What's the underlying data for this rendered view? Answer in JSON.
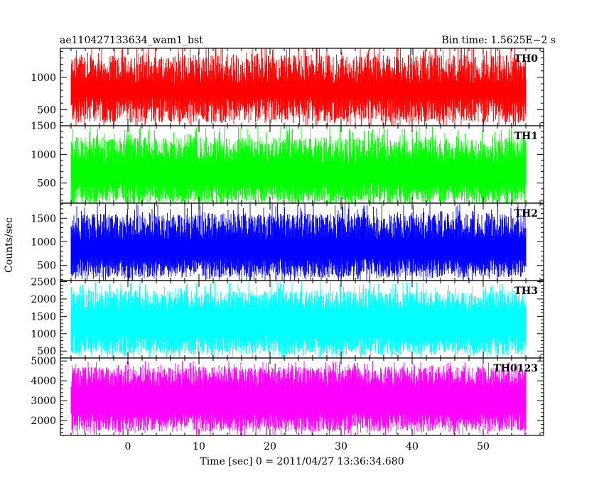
{
  "chart_data": {
    "type": "line",
    "title_left": "ae110427133634_wam1_bst",
    "title_right": "Bin time: 1.5625E−2 s",
    "ylabel": "Counts/sec",
    "xlabel": "Time [sec] 0 = 2011/04/27 13:36:34.680",
    "xlim": [
      -9.5,
      58.5
    ],
    "data_range": [
      -8.0,
      56.0
    ],
    "xticks_major": [
      0,
      10,
      20,
      30,
      40,
      50
    ],
    "xticks_minor_step": 2,
    "panels": [
      {
        "name": "TH0",
        "color": "#ff0000",
        "ylim": [
          250,
          1450
        ],
        "yticks": [
          500,
          1000
        ],
        "yticklabels": [
          "500",
          "1000"
        ],
        "minor_step": 100,
        "min": 200,
        "max": 1600,
        "low_band": [
          300,
          700
        ],
        "high_band": [
          900,
          1350
        ]
      },
      {
        "name": "TH1",
        "color": "#00ff00",
        "ylim": [
          150,
          1500
        ],
        "yticks": [
          500,
          1000,
          1500
        ],
        "yticklabels": [
          "500",
          "1000",
          "1500"
        ],
        "minor_step": 100,
        "min": 100,
        "max": 1500,
        "low_band": [
          150,
          500
        ],
        "high_band": [
          850,
          1300
        ]
      },
      {
        "name": "TH2",
        "color": "#0000ff",
        "ylim": [
          180,
          1820
        ],
        "yticks": [
          500,
          1000,
          1500
        ],
        "yticklabels": [
          "500",
          "1000",
          "1500"
        ],
        "minor_step": 100,
        "min": 150,
        "max": 1850,
        "low_band": [
          250,
          650
        ],
        "high_band": [
          1050,
          1600
        ]
      },
      {
        "name": "TH3",
        "color": "#00ffff",
        "ylim": [
          300,
          2530
        ],
        "yticks": [
          500,
          1000,
          1500,
          2000,
          2500
        ],
        "yticklabels": [
          "500",
          "1000",
          "1500",
          "2000",
          "2500"
        ],
        "minor_step": 100,
        "min": 300,
        "max": 2500,
        "low_band": [
          400,
          950
        ],
        "high_band": [
          1650,
          2250
        ]
      },
      {
        "name": "TH0123",
        "color": "#ff00ff",
        "ylim": [
          1250,
          5150
        ],
        "yticks": [
          2000,
          3000,
          4000,
          5000
        ],
        "yticklabels": [
          "2000",
          "3000",
          "4000",
          "5000"
        ],
        "minor_step": 200,
        "min": 1200,
        "max": 5000,
        "low_band": [
          1450,
          2400
        ],
        "high_band": [
          3700,
          4700
        ]
      }
    ]
  }
}
